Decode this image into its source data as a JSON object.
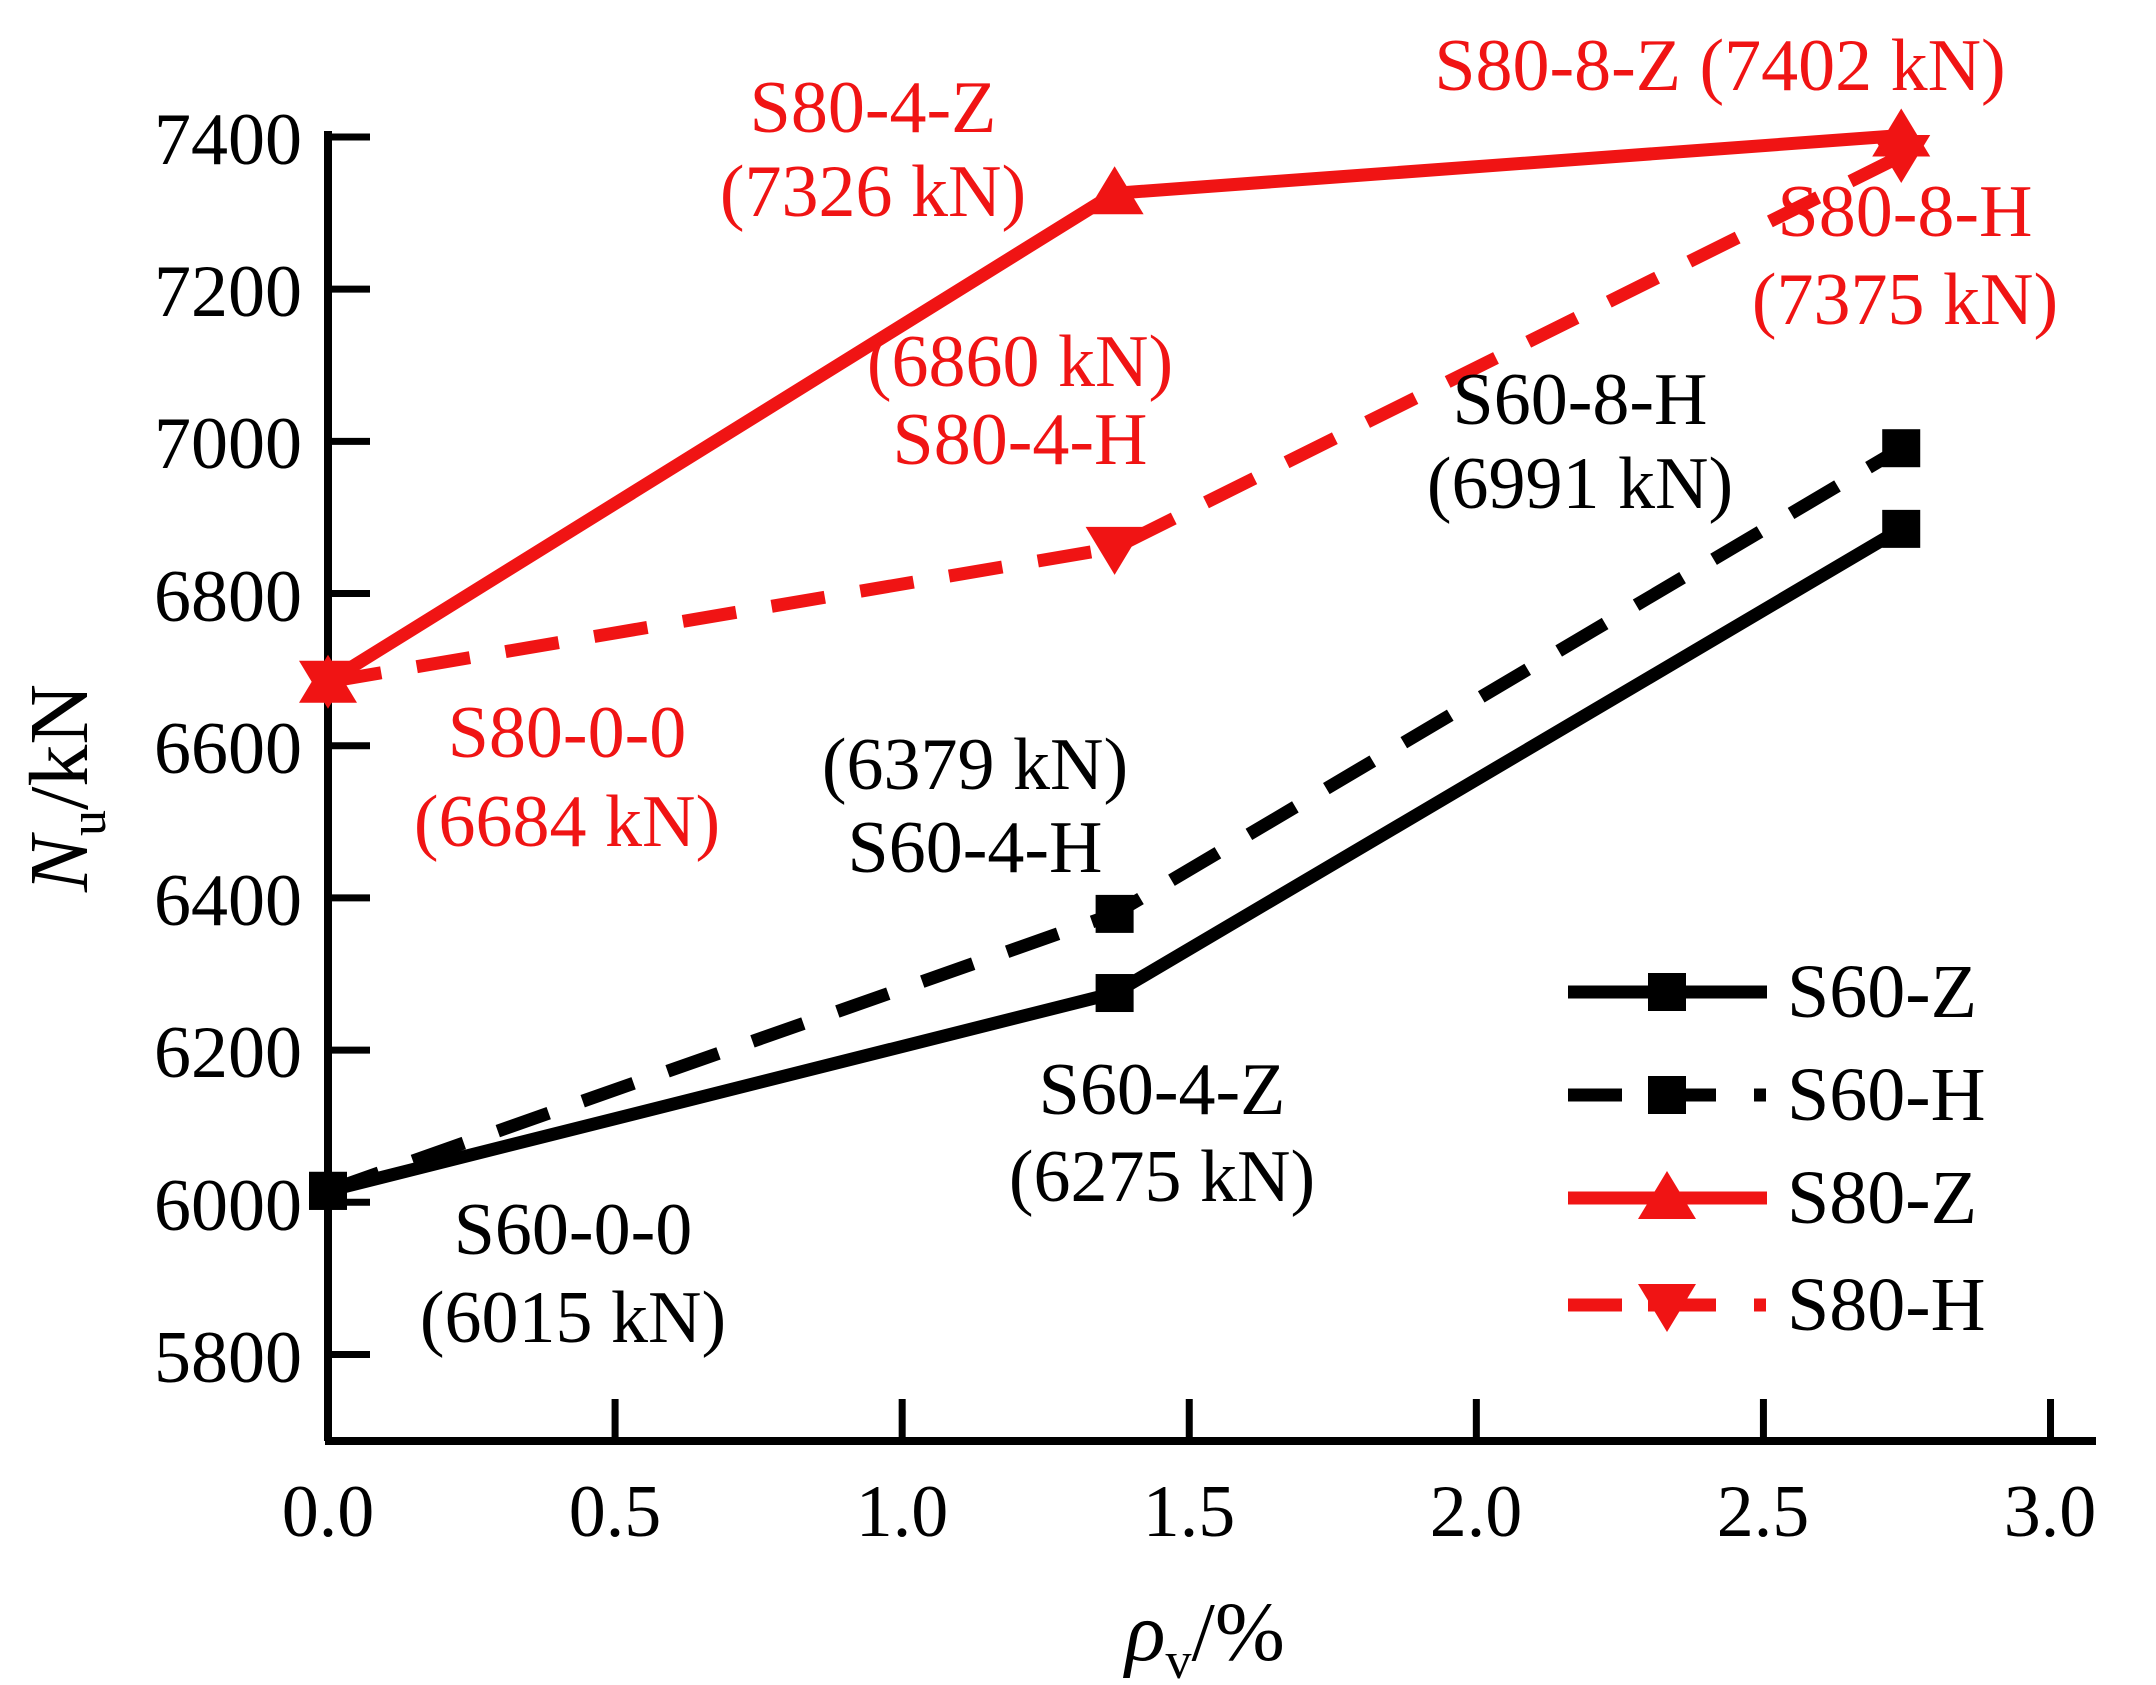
{
  "chart_data": {
    "type": "line",
    "title": "",
    "xlabel_symbol": "ρ",
    "xlabel_sub": "v",
    "xlabel_unit": "/%",
    "ylabel_symbol": "N",
    "ylabel_sub": "u",
    "ylabel_unit": "/kN",
    "x": [
      0,
      1.37,
      2.74
    ],
    "xlim": [
      0,
      3.08
    ],
    "ylim": [
      5680,
      7445
    ],
    "xticks": [
      "0.0",
      "0.5",
      "1.0",
      "1.5",
      "2.0",
      "2.5",
      "3.0"
    ],
    "yticks": [
      "7400",
      "7200",
      "7000",
      "6800",
      "6600",
      "6400",
      "6200",
      "6000",
      "5800"
    ],
    "grid": false,
    "legend_position": "lower right",
    "colors": {
      "black_series": "#000000",
      "red_series": "#f01414"
    },
    "series": [
      {
        "name": "S60-Z",
        "color": "#000000",
        "style": "solid",
        "marker": "square",
        "values": [
          6015,
          6275,
          6885
        ]
      },
      {
        "name": "S60-H",
        "color": "#000000",
        "style": "dash",
        "marker": "square",
        "values": [
          6015,
          6379,
          6991
        ]
      },
      {
        "name": "S80-Z",
        "color": "#f01414",
        "style": "solid",
        "marker": "triangle-up",
        "values": [
          6684,
          7326,
          7402
        ]
      },
      {
        "name": "S80-H",
        "color": "#f01414",
        "style": "dash",
        "marker": "triangle-down",
        "values": [
          6684,
          6860,
          7375
        ]
      }
    ],
    "annotations": [
      {
        "lines": [
          "S80-4-Z",
          "(7326 kN)"
        ],
        "color": "#f01414"
      },
      {
        "lines": [
          "S80-8-Z (7402 kN)"
        ],
        "color": "#f01414"
      },
      {
        "lines": [
          "S80-8-H",
          "(7375 kN)"
        ],
        "color": "#f01414"
      },
      {
        "lines": [
          "(6860 kN)",
          "S80-4-H"
        ],
        "color": "#f01414"
      },
      {
        "lines": [
          "S60-8-H",
          "(6991 kN)"
        ],
        "color": "#000000"
      },
      {
        "lines": [
          "S80-0-0",
          "(6684 kN)"
        ],
        "color": "#f01414"
      },
      {
        "lines": [
          "(6379 kN)",
          "S60-4-H"
        ],
        "color": "#000000"
      },
      {
        "lines": [
          "S60-4-Z",
          "(6275 kN)"
        ],
        "color": "#000000"
      },
      {
        "lines": [
          "S60-0-0",
          "(6015 kN)"
        ],
        "color": "#000000"
      }
    ]
  }
}
